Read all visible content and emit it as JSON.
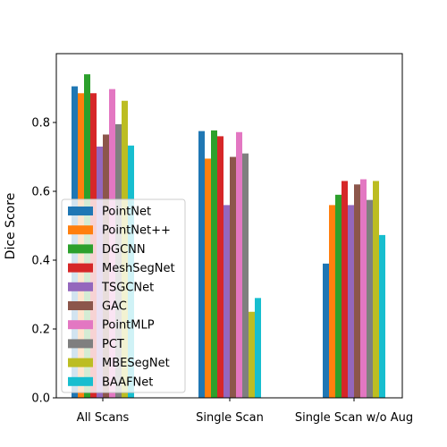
{
  "chart_data": {
    "type": "bar",
    "ylabel": "Dice Score",
    "xlabel": "",
    "ylim": [
      0,
      1.0
    ],
    "yticks": [
      "0.0",
      "0.2",
      "0.4",
      "0.6",
      "0.8"
    ],
    "grid": false,
    "legend_position": "lower-left",
    "categories": [
      "All Scans",
      "Single Scan",
      "Single Scan w/o Aug"
    ],
    "series": [
      {
        "name": "PointNet",
        "color": "#1f77b4",
        "values": [
          0.905,
          0.775,
          0.39
        ]
      },
      {
        "name": "PointNet++",
        "color": "#ff7f0e",
        "values": [
          0.885,
          0.695,
          0.56
        ]
      },
      {
        "name": "DGCNN",
        "color": "#2ca02c",
        "values": [
          0.94,
          0.777,
          0.59
        ]
      },
      {
        "name": "MeshSegNet",
        "color": "#d62728",
        "values": [
          0.885,
          0.76,
          0.63
        ]
      },
      {
        "name": "TSGCNet",
        "color": "#9467bd",
        "values": [
          0.73,
          0.56,
          0.56
        ]
      },
      {
        "name": "GAC",
        "color": "#8c564b",
        "values": [
          0.765,
          0.7,
          0.62
        ]
      },
      {
        "name": "PointMLP",
        "color": "#e377c2",
        "values": [
          0.897,
          0.772,
          0.635
        ]
      },
      {
        "name": "PCT",
        "color": "#7f7f7f",
        "values": [
          0.795,
          0.71,
          0.575
        ]
      },
      {
        "name": "MBESegNet",
        "color": "#bcbd22",
        "values": [
          0.863,
          0.25,
          0.63
        ]
      },
      {
        "name": "BAAFNet",
        "color": "#17becf",
        "values": [
          0.733,
          0.29,
          0.473
        ]
      }
    ]
  }
}
